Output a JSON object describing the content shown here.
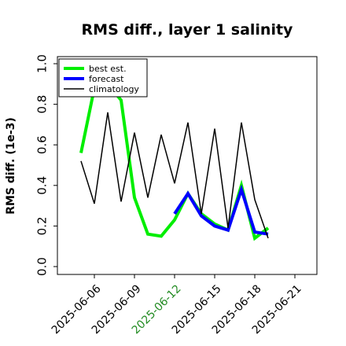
{
  "chart_data": {
    "type": "line",
    "title": "RMS diff., layer 1 salinity",
    "ylabel": "RMS diff. (1e-3)",
    "xlabel": "",
    "ylim": [
      0.0,
      1.0
    ],
    "yticks": [
      "0.0",
      "0.2",
      "0.4",
      "0.6",
      "0.8",
      "1.0"
    ],
    "xticks": [
      {
        "label": "2025-06-06",
        "color": "#000000"
      },
      {
        "label": "2025-06-09",
        "color": "#000000"
      },
      {
        "label": "2025-06-12",
        "color": "#228B22"
      },
      {
        "label": "2025-06-15",
        "color": "#000000"
      },
      {
        "label": "2025-06-18",
        "color": "#000000"
      },
      {
        "label": "2025-06-21",
        "color": "#000000"
      }
    ],
    "legend_position": "top-left",
    "series": [
      {
        "name": "best est.",
        "color": "#00ee00",
        "points": [
          [
            "2025-06-05",
            0.56
          ],
          [
            "2025-06-06",
            0.88
          ],
          [
            "2025-06-07",
            0.9
          ],
          [
            "2025-06-08",
            0.82
          ],
          [
            "2025-06-09",
            0.34
          ],
          [
            "2025-06-10",
            0.16
          ],
          [
            "2025-06-11",
            0.15
          ],
          [
            "2025-06-12",
            0.23
          ],
          [
            "2025-06-13",
            0.36
          ],
          [
            "2025-06-14",
            0.26
          ],
          [
            "2025-06-15",
            0.21
          ],
          [
            "2025-06-16",
            0.18
          ],
          [
            "2025-06-17",
            0.4
          ],
          [
            "2025-06-18",
            0.14
          ],
          [
            "2025-06-19",
            0.19
          ]
        ]
      },
      {
        "name": "forecast",
        "color": "#0000ff",
        "points": [
          [
            "2025-06-12",
            0.26
          ],
          [
            "2025-06-13",
            0.36
          ],
          [
            "2025-06-14",
            0.25
          ],
          [
            "2025-06-15",
            0.2
          ],
          [
            "2025-06-16",
            0.18
          ],
          [
            "2025-06-17",
            0.38
          ],
          [
            "2025-06-18",
            0.17
          ],
          [
            "2025-06-19",
            0.16
          ]
        ]
      },
      {
        "name": "climatology",
        "color": "#000000",
        "points": [
          [
            "2025-06-05",
            0.52
          ],
          [
            "2025-06-06",
            0.31
          ],
          [
            "2025-06-07",
            0.76
          ],
          [
            "2025-06-08",
            0.32
          ],
          [
            "2025-06-09",
            0.66
          ],
          [
            "2025-06-10",
            0.34
          ],
          [
            "2025-06-11",
            0.65
          ],
          [
            "2025-06-12",
            0.41
          ],
          [
            "2025-06-13",
            0.71
          ],
          [
            "2025-06-14",
            0.26
          ],
          [
            "2025-06-15",
            0.68
          ],
          [
            "2025-06-16",
            0.19
          ],
          [
            "2025-06-17",
            0.71
          ],
          [
            "2025-06-18",
            0.33
          ],
          [
            "2025-06-19",
            0.14
          ]
        ]
      }
    ]
  }
}
